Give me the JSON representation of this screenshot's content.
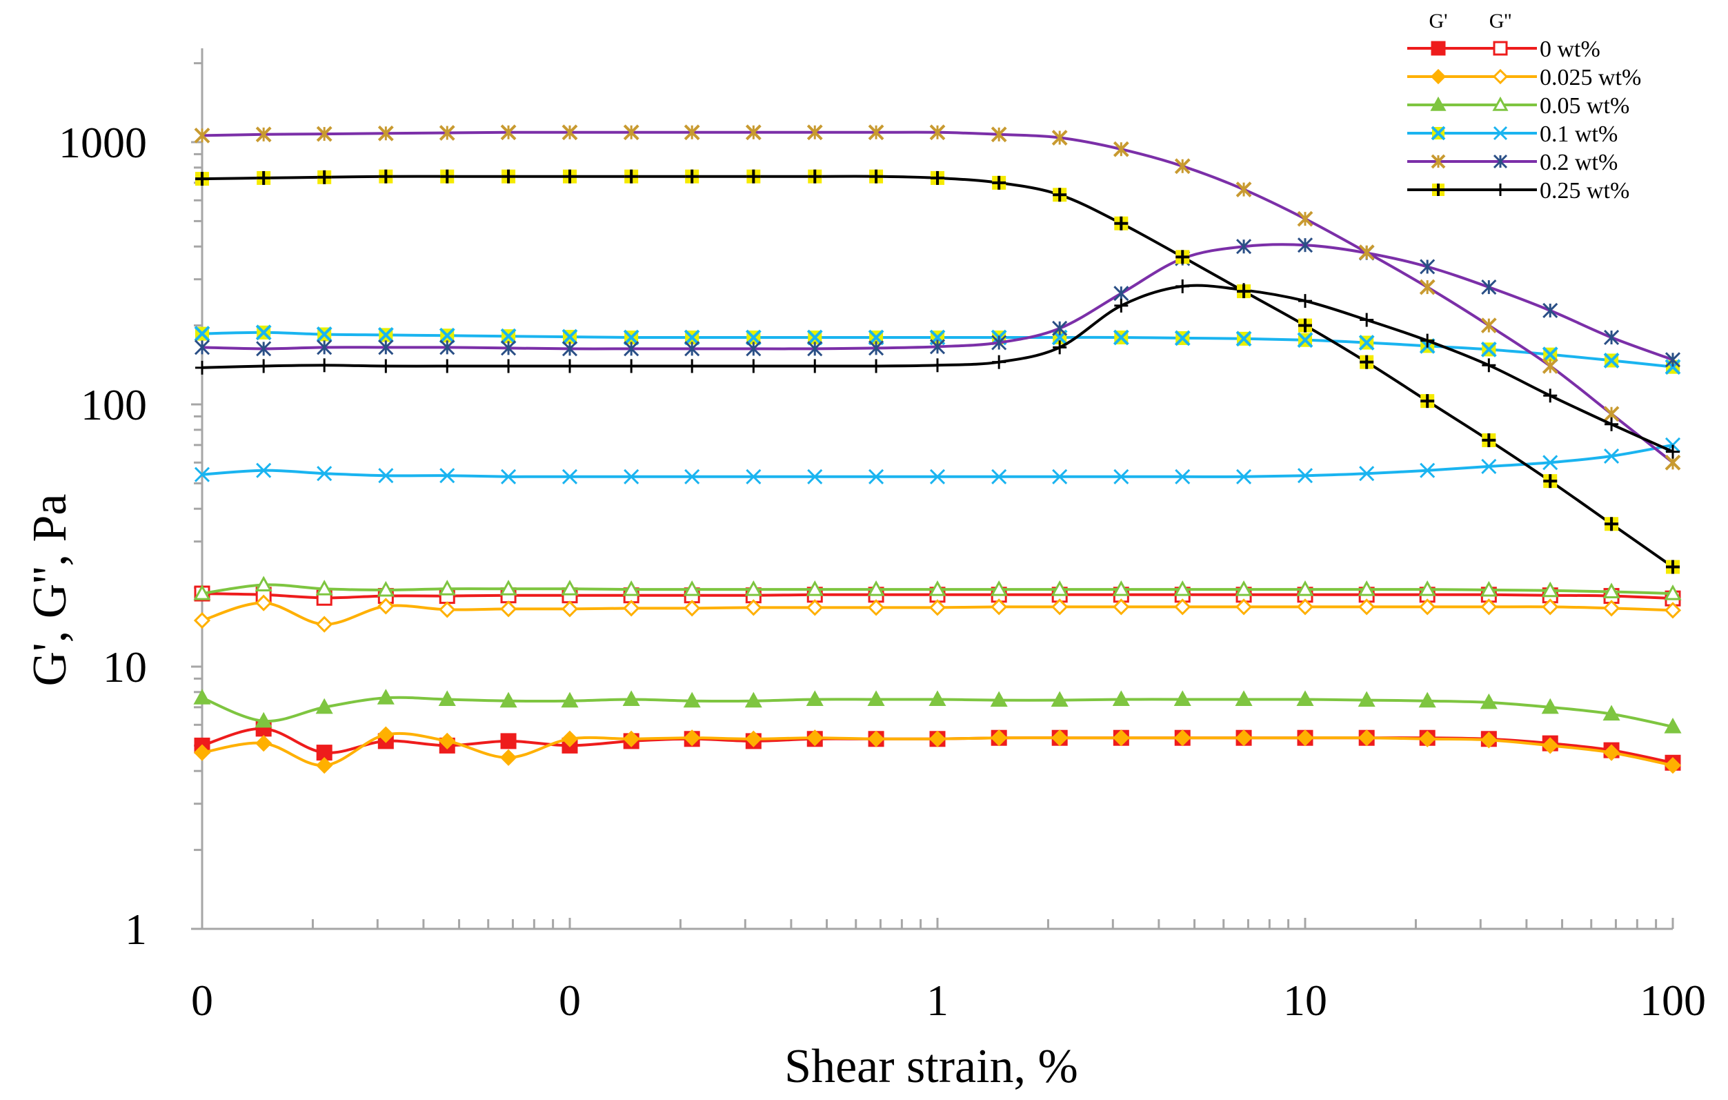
{
  "chart_data": {
    "type": "line",
    "title": "",
    "xlabel": "Shear strain, %",
    "ylabel": "G', G'', Pa",
    "x_scale": "log",
    "y_scale": "log",
    "xlim": [
      0.01,
      100
    ],
    "ylim": [
      1,
      2000
    ],
    "x_tick_values": [
      0.01,
      0.1,
      1,
      10,
      100
    ],
    "x_tick_labels": [
      "0",
      "0",
      "1",
      "10",
      "100"
    ],
    "y_tick_values": [
      1,
      10,
      100,
      1000
    ],
    "y_tick_labels": [
      "1",
      "10",
      "100",
      "1000"
    ],
    "grid": false,
    "legend_position": "top-right",
    "legend_header": [
      "G'",
      "G''"
    ],
    "x": [
      0.01,
      0.0147,
      0.0215,
      0.0316,
      0.0464,
      0.0681,
      0.1,
      0.147,
      0.215,
      0.316,
      0.464,
      0.681,
      1,
      1.47,
      2.15,
      3.16,
      4.64,
      6.81,
      10,
      14.7,
      21.5,
      31.6,
      46.4,
      68.1,
      100
    ],
    "series": [
      {
        "name": "0 wt%",
        "color": "#ee1c1c",
        "g1_marker": "square-filled",
        "g2_marker": "square-open",
        "g1": [
          5.0,
          5.8,
          4.7,
          5.2,
          5.0,
          5.2,
          5.0,
          5.2,
          5.3,
          5.2,
          5.3,
          5.3,
          5.3,
          5.35,
          5.35,
          5.35,
          5.35,
          5.35,
          5.35,
          5.35,
          5.35,
          5.3,
          5.1,
          4.8,
          4.3
        ],
        "g2": [
          19.0,
          18.8,
          18.3,
          18.6,
          18.6,
          18.7,
          18.7,
          18.7,
          18.7,
          18.7,
          18.8,
          18.8,
          18.8,
          18.8,
          18.8,
          18.8,
          18.8,
          18.8,
          18.8,
          18.8,
          18.8,
          18.8,
          18.7,
          18.6,
          18.2
        ]
      },
      {
        "name": "0.025 wt%",
        "color": "#ffb000",
        "g1_marker": "diamond-filled",
        "g2_marker": "diamond-open",
        "g1": [
          4.7,
          5.1,
          4.2,
          5.5,
          5.2,
          4.5,
          5.3,
          5.3,
          5.35,
          5.3,
          5.35,
          5.3,
          5.3,
          5.35,
          5.35,
          5.35,
          5.35,
          5.35,
          5.35,
          5.35,
          5.3,
          5.25,
          5.0,
          4.7,
          4.2
        ],
        "g2": [
          15.0,
          17.5,
          14.5,
          17.0,
          16.5,
          16.6,
          16.6,
          16.7,
          16.7,
          16.8,
          16.8,
          16.8,
          16.8,
          16.9,
          16.9,
          16.9,
          16.9,
          16.9,
          16.9,
          16.9,
          16.9,
          16.9,
          16.9,
          16.7,
          16.4
        ]
      },
      {
        "name": "0.05 wt%",
        "color": "#7ec540",
        "g1_marker": "triangle-filled",
        "g2_marker": "triangle-open",
        "g1": [
          7.6,
          6.2,
          7.0,
          7.6,
          7.5,
          7.4,
          7.4,
          7.5,
          7.4,
          7.4,
          7.5,
          7.5,
          7.5,
          7.45,
          7.45,
          7.5,
          7.5,
          7.5,
          7.5,
          7.45,
          7.4,
          7.3,
          7.0,
          6.6,
          5.9
        ],
        "g2": [
          19.0,
          20.5,
          19.8,
          19.6,
          19.8,
          19.8,
          19.8,
          19.7,
          19.7,
          19.7,
          19.7,
          19.7,
          19.7,
          19.7,
          19.7,
          19.7,
          19.7,
          19.7,
          19.7,
          19.7,
          19.7,
          19.6,
          19.5,
          19.3,
          19.0
        ]
      },
      {
        "name": "0.1 wt%",
        "color": "#1ab4f0",
        "g1_marker": "x-filled",
        "g2_marker": "x-open",
        "g1": [
          186,
          188,
          185,
          184,
          183,
          182,
          181,
          180,
          180,
          180,
          180,
          180,
          180,
          180,
          180,
          180,
          179,
          178,
          176,
          172,
          167,
          162,
          155,
          147,
          139
        ],
        "g2": [
          54,
          56,
          54.5,
          53.5,
          53.5,
          53,
          53,
          53,
          53,
          53,
          53,
          53,
          53,
          53,
          53,
          53,
          53,
          53,
          53.5,
          54.5,
          56,
          58,
          60,
          63.5,
          70
        ]
      },
      {
        "name": "0.2 wt%",
        "color": "#7b2fa8",
        "g1_marker": "star-filled",
        "g2_marker": "star-open",
        "g1": [
          1060,
          1070,
          1075,
          1080,
          1085,
          1090,
          1090,
          1090,
          1090,
          1090,
          1090,
          1090,
          1090,
          1070,
          1040,
          940,
          810,
          660,
          510,
          380,
          280,
          200,
          140,
          92,
          60
        ],
        "g2": [
          165,
          163,
          165,
          165,
          165,
          164,
          163,
          163,
          163,
          163,
          163,
          164,
          166,
          172,
          195,
          265,
          360,
          400,
          405,
          378,
          335,
          280,
          228,
          180,
          148
        ]
      },
      {
        "name": "0.25 wt%",
        "color": "#000000",
        "g1_marker": "plus-filled",
        "g2_marker": "plus-open",
        "g1": [
          725,
          730,
          735,
          740,
          740,
          740,
          740,
          740,
          740,
          740,
          740,
          740,
          730,
          700,
          630,
          490,
          365,
          270,
          200,
          145,
          103,
          73,
          51,
          35,
          24
        ],
        "g2": [
          138,
          140,
          141,
          140,
          140,
          140,
          140,
          140,
          140,
          140,
          140,
          140,
          141,
          145,
          165,
          238,
          282,
          273,
          248,
          210,
          175,
          141,
          108,
          84,
          66
        ]
      }
    ]
  }
}
